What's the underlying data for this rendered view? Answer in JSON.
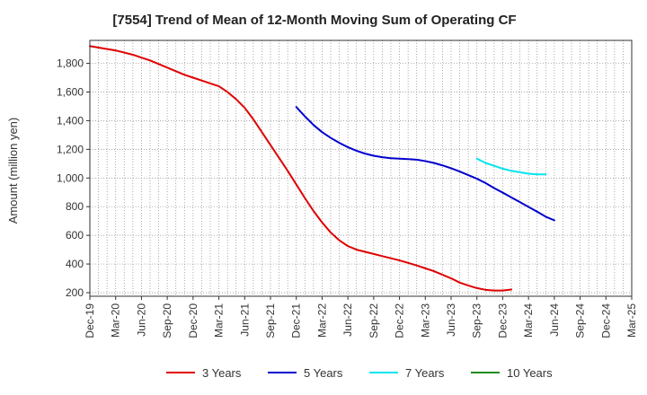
{
  "chart_data": {
    "type": "line",
    "title": "[7554]  Trend of Mean of 12-Month Moving Sum of Operating CF",
    "xlabel": "",
    "ylabel": "Amount (million yen)",
    "ylim": [
      175,
      1960
    ],
    "yticks": [
      200,
      400,
      600,
      800,
      1000,
      1200,
      1400,
      1600,
      1800
    ],
    "ytick_labels": [
      "200",
      "400",
      "600",
      "800",
      "1,000",
      "1,200",
      "1,400",
      "1,600",
      "1,800"
    ],
    "x_months": [
      "Dec-19",
      "Jan-20",
      "Feb-20",
      "Mar-20",
      "Apr-20",
      "May-20",
      "Jun-20",
      "Jul-20",
      "Aug-20",
      "Sep-20",
      "Oct-20",
      "Nov-20",
      "Dec-20",
      "Jan-21",
      "Feb-21",
      "Mar-21",
      "Apr-21",
      "May-21",
      "Jun-21",
      "Jul-21",
      "Aug-21",
      "Sep-21",
      "Oct-21",
      "Nov-21",
      "Dec-21",
      "Jan-22",
      "Feb-22",
      "Mar-22",
      "Apr-22",
      "May-22",
      "Jun-22",
      "Jul-22",
      "Aug-22",
      "Sep-22",
      "Oct-22",
      "Nov-22",
      "Dec-22",
      "Jan-23",
      "Feb-23",
      "Mar-23",
      "Apr-23",
      "May-23",
      "Jun-23",
      "Jul-23",
      "Aug-23",
      "Sep-23",
      "Oct-23",
      "Nov-23",
      "Dec-23",
      "Jan-24",
      "Feb-24",
      "Mar-24",
      "Apr-24",
      "May-24",
      "Jun-24",
      "Jul-24",
      "Aug-24",
      "Sep-24",
      "Oct-24",
      "Nov-24",
      "Dec-24",
      "Jan-25",
      "Feb-25",
      "Mar-25"
    ],
    "xtick_labels": [
      "Dec-19",
      "Mar-20",
      "Jun-20",
      "Sep-20",
      "Dec-20",
      "Mar-21",
      "Jun-21",
      "Sep-21",
      "Dec-21",
      "Mar-22",
      "Jun-22",
      "Sep-22",
      "Dec-22",
      "Mar-23",
      "Jun-23",
      "Sep-23",
      "Dec-23",
      "Mar-24",
      "Jun-24",
      "Sep-24",
      "Dec-24",
      "Mar-25"
    ],
    "grid": true,
    "legend_position": "bottom",
    "series": [
      {
        "name": "3 Years",
        "color": "#e00000",
        "start_index": 0,
        "values": [
          1920,
          1910,
          1900,
          1890,
          1875,
          1860,
          1840,
          1820,
          1795,
          1770,
          1745,
          1720,
          1700,
          1680,
          1660,
          1640,
          1600,
          1550,
          1490,
          1410,
          1320,
          1230,
          1140,
          1050,
          955,
          860,
          770,
          690,
          620,
          565,
          525,
          500,
          485,
          470,
          455,
          440,
          425,
          408,
          390,
          370,
          350,
          325,
          300,
          270,
          250,
          232,
          220,
          215,
          215,
          222
        ]
      },
      {
        "name": "5 Years",
        "color": "#0000cc",
        "start_index": 24,
        "values": [
          1495,
          1430,
          1370,
          1320,
          1280,
          1245,
          1215,
          1190,
          1170,
          1155,
          1145,
          1138,
          1135,
          1132,
          1128,
          1118,
          1105,
          1088,
          1068,
          1045,
          1020,
          995,
          965,
          930,
          898,
          865,
          832,
          798,
          765,
          730,
          705
        ]
      },
      {
        "name": "7 Years",
        "color": "#00e5ee",
        "start_index": 45,
        "values": [
          1135,
          1105,
          1085,
          1065,
          1050,
          1040,
          1030,
          1025,
          1025
        ]
      },
      {
        "name": "10 Years",
        "color": "#228b22",
        "start_index": 0,
        "values": []
      }
    ]
  }
}
